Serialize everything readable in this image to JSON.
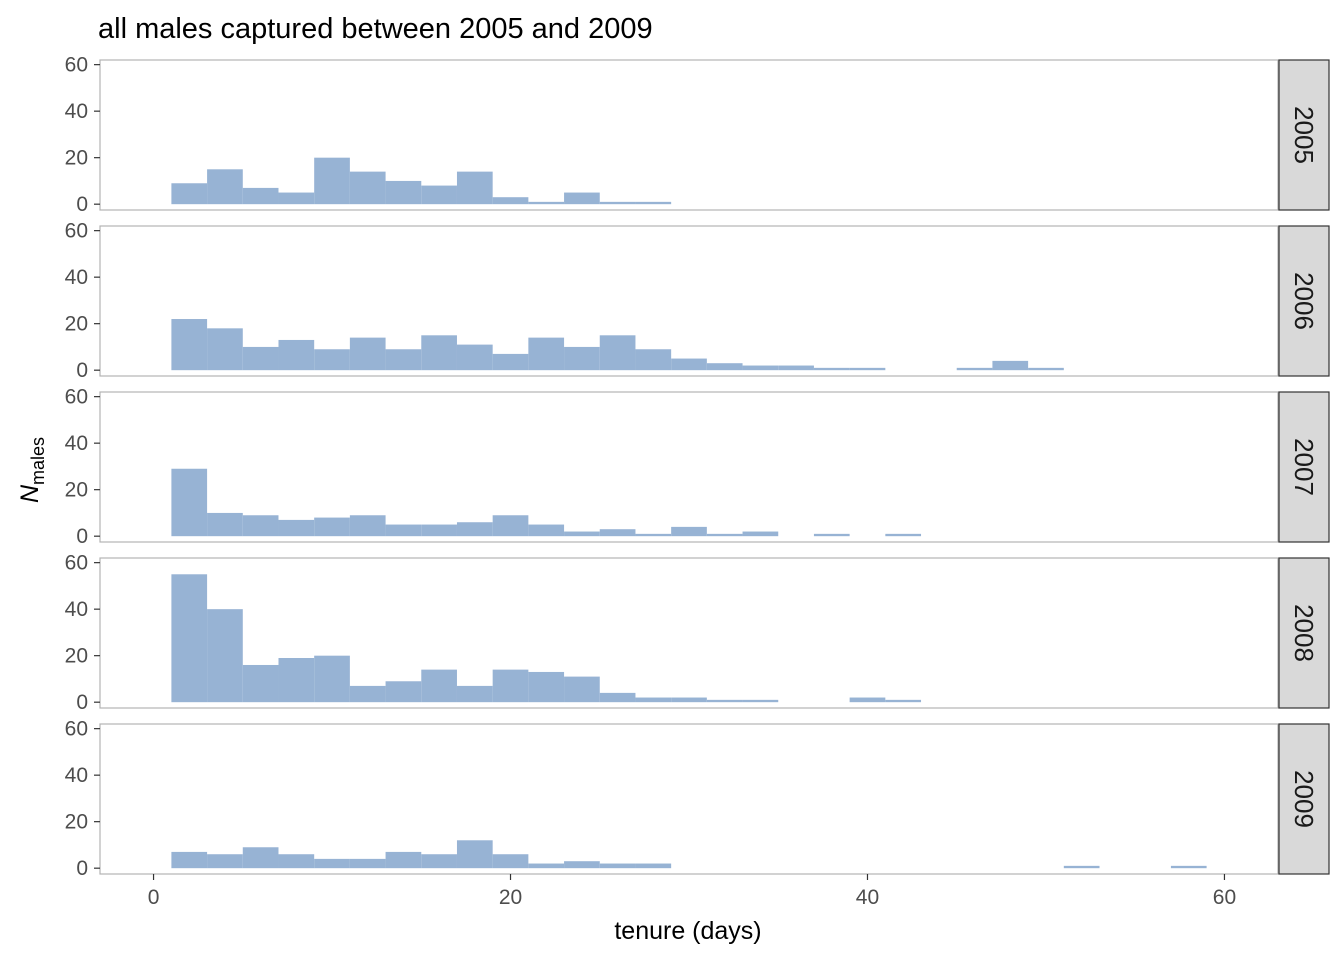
{
  "chart_data": {
    "type": "bar",
    "subtype": "histogram-facets",
    "title": "all males captured between 2005 and 2009",
    "xlabel": "tenure (days)",
    "ylabel": {
      "main": "N",
      "subscript": "males"
    },
    "xlim": [
      -3,
      63
    ],
    "ylim": [
      -2.5,
      62
    ],
    "x_ticks": [
      0,
      20,
      40,
      60
    ],
    "y_ticks": [
      0,
      20,
      40,
      60
    ],
    "bin_width": 2,
    "bin_starts": [
      1,
      3,
      5,
      7,
      9,
      11,
      13,
      15,
      17,
      19,
      21,
      23,
      25,
      27,
      29,
      31,
      33,
      35,
      37,
      39,
      41,
      43,
      45,
      47,
      49,
      51,
      53,
      55,
      57,
      59
    ],
    "bar_color": "#97b3d4",
    "strip_fill": "#d9d9d9",
    "grid": false,
    "legend": "none",
    "series": [
      {
        "name": "2005",
        "values": [
          9,
          15,
          7,
          5,
          20,
          14,
          10,
          8,
          14,
          3,
          1,
          5,
          1,
          1,
          0,
          0,
          0,
          0,
          0,
          0,
          0,
          0,
          0,
          0,
          0,
          0,
          0,
          0,
          0,
          0
        ]
      },
      {
        "name": "2006",
        "values": [
          22,
          18,
          10,
          13,
          9,
          14,
          9,
          15,
          11,
          7,
          14,
          10,
          15,
          9,
          5,
          3,
          2,
          2,
          1,
          1,
          0,
          0,
          1,
          4,
          1,
          0,
          0,
          0,
          0,
          0
        ]
      },
      {
        "name": "2007",
        "values": [
          29,
          10,
          9,
          7,
          8,
          9,
          5,
          5,
          6,
          9,
          5,
          2,
          3,
          1,
          4,
          1,
          2,
          0,
          1,
          0,
          1,
          0,
          0,
          0,
          0,
          0,
          0,
          0,
          0,
          0
        ]
      },
      {
        "name": "2008",
        "values": [
          55,
          40,
          16,
          19,
          20,
          7,
          9,
          14,
          7,
          14,
          13,
          11,
          4,
          2,
          2,
          1,
          1,
          0,
          0,
          2,
          1,
          0,
          0,
          0,
          0,
          0,
          0,
          0,
          0,
          0
        ]
      },
      {
        "name": "2009",
        "values": [
          7,
          6,
          9,
          6,
          4,
          4,
          7,
          6,
          12,
          6,
          2,
          3,
          2,
          2,
          0,
          0,
          0,
          0,
          0,
          0,
          0,
          0,
          0,
          0,
          0,
          1,
          0,
          0,
          1,
          0
        ]
      }
    ]
  }
}
